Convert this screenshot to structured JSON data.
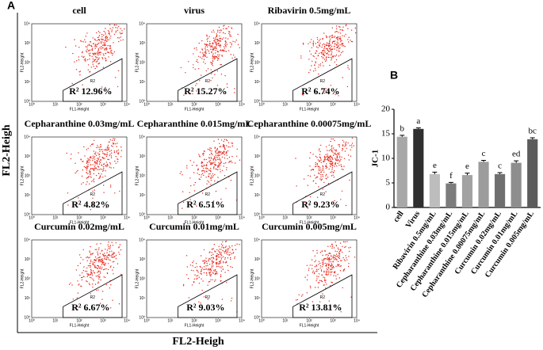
{
  "panel_a": {
    "label": "A",
    "y_axis_label": "FL2-Heigh",
    "x_axis_label": "FL2-Heigh",
    "inner_x_label": "FL1-Height",
    "inner_y_label": "FL2-Height",
    "gate_name": "R2",
    "ticks": [
      "10⁰",
      "10¹",
      "10²",
      "10³",
      "10⁴"
    ],
    "plots": [
      {
        "title": "cell",
        "stat": "R²  12.96%"
      },
      {
        "title": "virus",
        "stat": "R²  15.27%"
      },
      {
        "title": "Ribavirin 0.5mg/mL",
        "stat": "R²  6.74%"
      },
      {
        "title": "Cepharanthine 0.03mg/mL",
        "stat": "R²  4.82%"
      },
      {
        "title": "Cepharanthine 0.015mg/mL",
        "stat": "R²  6.51%"
      },
      {
        "title": "Cepharanthine 0.00075mg/mL",
        "stat": "R²  9.23%"
      },
      {
        "title": "Curcumin 0.02mg/mL",
        "stat": "R²  6.67%"
      },
      {
        "title": "Curcumin 0.01mg/mL",
        "stat": "R²  9.03%"
      },
      {
        "title": "Curcumin 0.005mg/mL",
        "stat": "R²  13.81%"
      }
    ]
  },
  "chart_data": {
    "type": "bar",
    "panel_label": "B",
    "y_label": "JC-1",
    "categories": [
      "cell",
      "Virus",
      "Ribavirin 0.5mg/mL",
      "Cepharanthine 0.03mg/mL",
      "Cepharanthine 0.015mg/mL",
      "Cepharanthine 0.00075mg/mL",
      "Curcumin 0.02mg/mL",
      "Curcumin 0.01mg/mL",
      "Curcumin 0.005mg/mL"
    ],
    "values": [
      14.4,
      16.0,
      6.8,
      4.9,
      6.6,
      9.3,
      6.8,
      9.1,
      13.9
    ],
    "errors": [
      0.3,
      0.2,
      0.4,
      0.2,
      0.4,
      0.3,
      0.3,
      0.4,
      0.3
    ],
    "annotations": [
      "b",
      "a",
      "e",
      "f",
      "e",
      "c",
      "c",
      "ed",
      "bc"
    ],
    "colors": [
      "#a8a8a8",
      "#2f2f2f",
      "#bdbdbd",
      "#7c7c7c",
      "#a2a2a2",
      "#9c9c9c",
      "#6f6f6f",
      "#8e8e8e",
      "#5c5c5c"
    ],
    "ylim": [
      0,
      20
    ],
    "yticks": [
      0,
      5,
      10,
      15,
      20
    ]
  }
}
